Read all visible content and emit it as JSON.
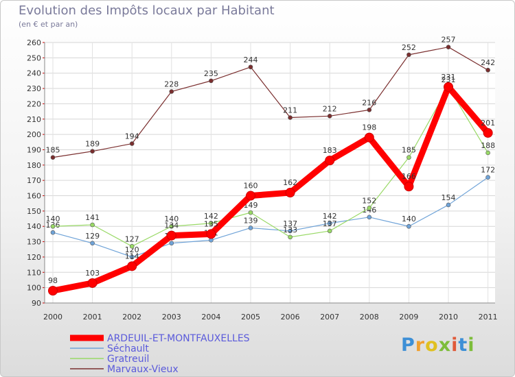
{
  "chart_data": {
    "type": "line",
    "title": "Evolution des Impôts locaux par Habitant",
    "subtitle": "(en € et par an)",
    "categories": [
      "2000",
      "2001",
      "2002",
      "2003",
      "2004",
      "2005",
      "2006",
      "2007",
      "2008",
      "2009",
      "2010",
      "2011"
    ],
    "ylim": [
      90,
      260
    ],
    "yticks": [
      90,
      100,
      110,
      120,
      130,
      140,
      150,
      160,
      170,
      180,
      190,
      200,
      210,
      220,
      230,
      240,
      250,
      260
    ],
    "grid": true,
    "legend_position": "bottom-left",
    "series": [
      {
        "name": "ARDEUIL-ET-MONTFAUXELLES",
        "color": "#ff0000",
        "values": [
          98,
          103,
          114,
          134,
          135,
          160,
          162,
          183,
          198,
          166,
          231,
          201
        ]
      },
      {
        "name": "Séchault",
        "color": "#6fa3d8",
        "values": [
          136,
          129,
          120,
          129,
          131,
          139,
          137,
          142,
          146,
          140,
          154,
          172
        ]
      },
      {
        "name": "Gratreuil",
        "color": "#99d966",
        "values": [
          140,
          141,
          127,
          140,
          142,
          149,
          133,
          137,
          152,
          185,
          231,
          188
        ]
      },
      {
        "name": "Marvaux-Vieux",
        "color": "#7a2e2e",
        "values": [
          185,
          189,
          194,
          228,
          235,
          244,
          211,
          212,
          216,
          252,
          257,
          242
        ]
      }
    ]
  },
  "branding": {
    "logo_letters": [
      "P",
      "r",
      "o",
      "x",
      "i",
      "t",
      "i"
    ],
    "logo_colors": [
      "#3d8fd6",
      "#f0a030",
      "#e0c020",
      "#7dbd3a",
      "#e05a3a",
      "#3d8fd6",
      "#7dbd3a"
    ]
  }
}
